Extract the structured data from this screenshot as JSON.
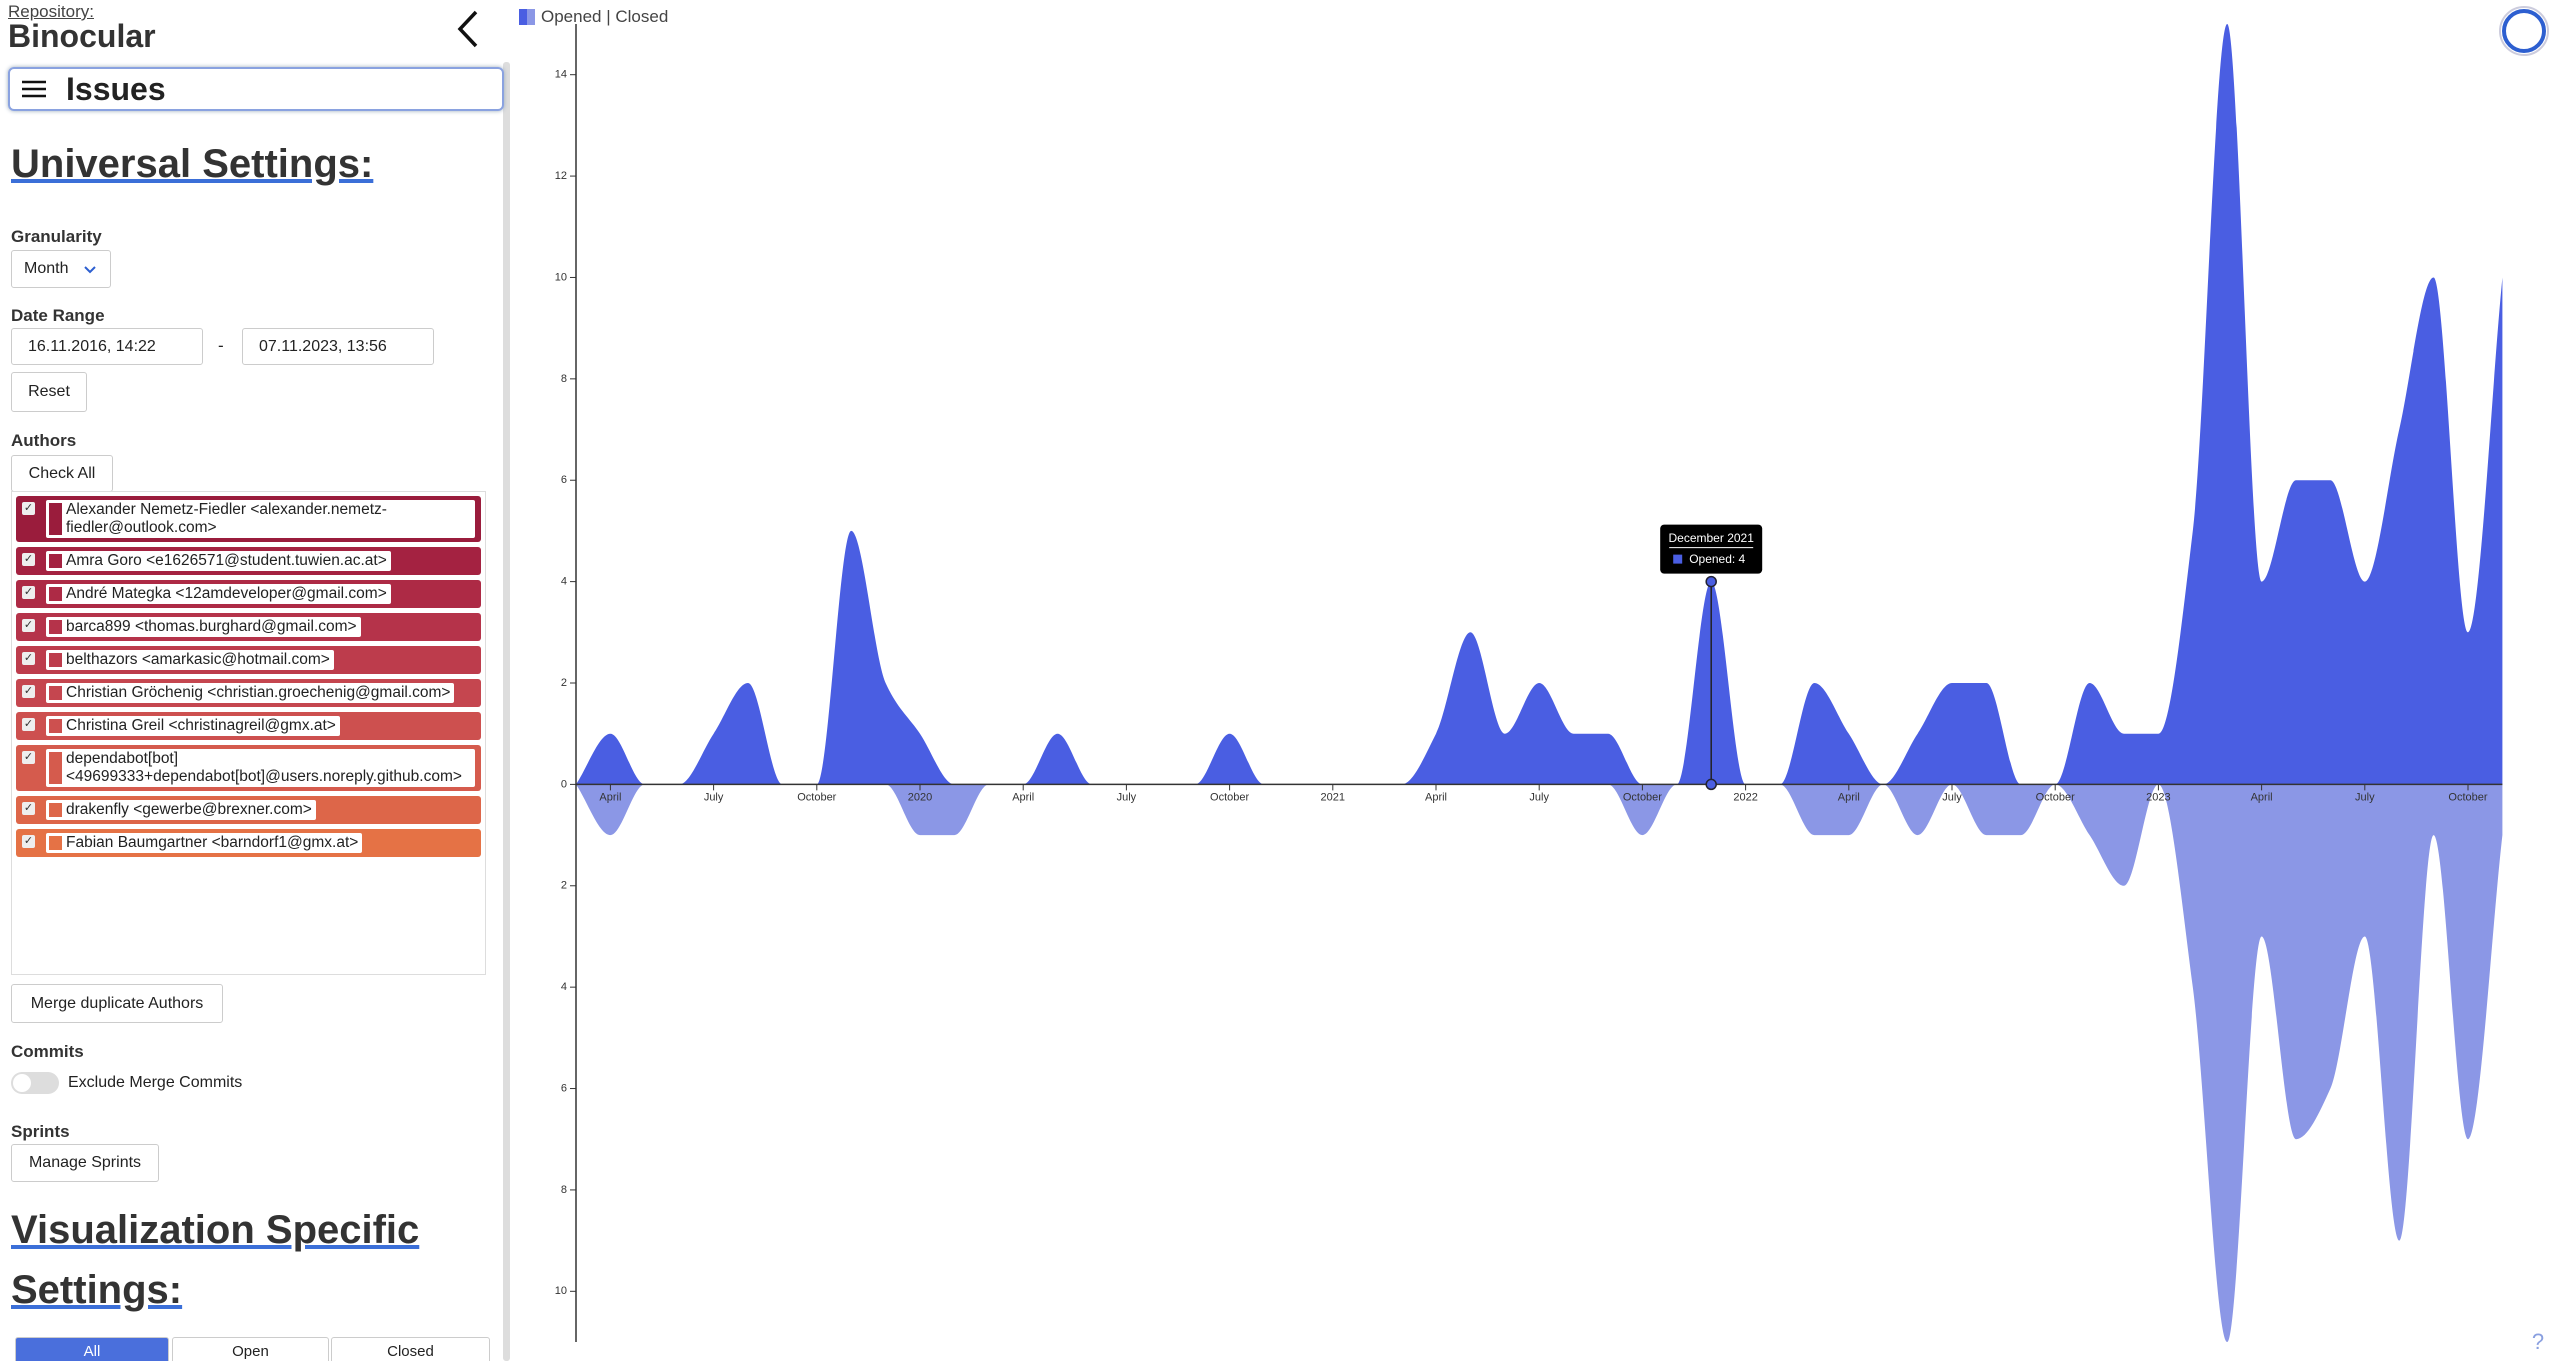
{
  "sidebar": {
    "repository_label": "Repository:",
    "repository": "Binocular",
    "view": "Issues",
    "universal_heading": "Universal Settings:",
    "granularity_label": "Granularity",
    "granularity": "Month",
    "date_range_label": "Date Range",
    "date_from": "16.11.2016, 14:22",
    "date_separator": "-",
    "date_to": "07.11.2023, 13:56",
    "reset": "Reset",
    "authors_label": "Authors",
    "check_all": "Check All",
    "authors": [
      {
        "label": "Alexander Nemetz-Fiedler <alexander.nemetz-fiedler@outlook.com>",
        "color": "#9a1c3c"
      },
      {
        "label": "Amra Goro <e1626571@student.tuwien.ac.at>",
        "color": "#a42241"
      },
      {
        "label": "André Mategka <12amdeveloper@gmail.com>",
        "color": "#ad2a45"
      },
      {
        "label": "barca899 <thomas.burghard@gmail.com>",
        "color": "#b5334a"
      },
      {
        "label": "belthazors <amarkasic@hotmail.com>",
        "color": "#bd3c4c"
      },
      {
        "label": "Christian Gröchenig <christian.groechenig@gmail.com>",
        "color": "#c5464f"
      },
      {
        "label": "Christina Greil <christinagreil@gmx.at>",
        "color": "#cd504f"
      },
      {
        "label": "dependabot[bot] <49699333+dependabot[bot]@users.noreply.github.com>",
        "color": "#d55b4d"
      },
      {
        "label": "drakenfly <gewerbe@brexner.com>",
        "color": "#dd6649"
      },
      {
        "label": "Fabian Baumgartner <barndorf1@gmx.at>",
        "color": "#e57245"
      }
    ],
    "merge": "Merge duplicate Authors",
    "commits_label": "Commits",
    "exclude_merge": "Exclude Merge Commits",
    "sprints_label": "Sprints",
    "manage_sprints": "Manage Sprints",
    "vis_heading": "Visualization Specific Settings:",
    "filters": [
      "All",
      "Open",
      "Closed"
    ]
  },
  "help": "?",
  "chart_data": {
    "type": "area",
    "x": [
      "2019-03",
      "2019-04",
      "2019-05",
      "2019-06",
      "2019-07",
      "2019-08",
      "2019-09",
      "2019-10",
      "2019-11",
      "2019-12",
      "2020-01",
      "2020-02",
      "2020-03",
      "2020-04",
      "2020-05",
      "2020-06",
      "2020-07",
      "2020-08",
      "2020-09",
      "2020-10",
      "2020-11",
      "2020-12",
      "2021-01",
      "2021-02",
      "2021-03",
      "2021-04",
      "2021-05",
      "2021-06",
      "2021-07",
      "2021-08",
      "2021-09",
      "2021-10",
      "2021-11",
      "2021-12",
      "2022-01",
      "2022-02",
      "2022-03",
      "2022-04",
      "2022-05",
      "2022-06",
      "2022-07",
      "2022-08",
      "2022-09",
      "2022-10",
      "2022-11",
      "2022-12",
      "2023-01",
      "2023-02",
      "2023-03",
      "2023-04",
      "2023-05",
      "2023-06",
      "2023-07",
      "2023-08",
      "2023-09",
      "2023-10",
      "2023-11"
    ],
    "series": [
      {
        "name": "Opened",
        "color": "#4a5ee2",
        "direction": "up",
        "values": [
          0,
          1,
          0,
          0,
          1,
          2,
          0,
          0,
          5,
          2,
          1,
          0,
          0,
          0,
          1,
          0,
          0,
          0,
          0,
          1,
          0,
          0,
          0,
          0,
          0,
          1,
          3,
          1,
          2,
          1,
          1,
          0,
          0,
          4,
          0,
          0,
          2,
          1,
          0,
          1,
          2,
          2,
          0,
          0,
          2,
          1,
          1,
          5,
          15,
          4,
          6,
          6,
          4,
          7,
          10,
          3,
          10
        ]
      },
      {
        "name": "Closed",
        "color": "#8b97e6",
        "direction": "down",
        "values": [
          0,
          1,
          0,
          0,
          0,
          0,
          0,
          0,
          0,
          0,
          1,
          1,
          0,
          0,
          0,
          0,
          0,
          0,
          0,
          0,
          0,
          0,
          0,
          0,
          0,
          0,
          0,
          0,
          0,
          0,
          0,
          1,
          0,
          0,
          0,
          0,
          1,
          1,
          0,
          1,
          0,
          1,
          1,
          0,
          1,
          2,
          0,
          4,
          11,
          3,
          7,
          6,
          3,
          9,
          1,
          7,
          1
        ]
      }
    ],
    "legend_separator": " | ",
    "ylim": [
      -11,
      15
    ],
    "yticks": [
      {
        "value": -10,
        "label": "10"
      },
      {
        "value": -8,
        "label": "8"
      },
      {
        "value": -6,
        "label": "6"
      },
      {
        "value": -4,
        "label": "4"
      },
      {
        "value": -2,
        "label": "2"
      },
      0,
      2,
      4,
      6,
      8,
      10,
      12,
      14
    ],
    "xticks": [
      {
        "value": "2019-04",
        "label": "April"
      },
      {
        "value": "2019-07",
        "label": "July"
      },
      {
        "value": "2019-10",
        "label": "October"
      },
      {
        "value": "2020-01",
        "label": "2020"
      },
      {
        "value": "2020-04",
        "label": "April"
      },
      {
        "value": "2020-07",
        "label": "July"
      },
      {
        "value": "2020-10",
        "label": "October"
      },
      {
        "value": "2021-01",
        "label": "2021"
      },
      {
        "value": "2021-04",
        "label": "April"
      },
      {
        "value": "2021-07",
        "label": "July"
      },
      {
        "value": "2021-10",
        "label": "October"
      },
      {
        "value": "2022-01",
        "label": "2022"
      },
      {
        "value": "2022-04",
        "label": "April"
      },
      {
        "value": "2022-07",
        "label": "July"
      },
      {
        "value": "2022-10",
        "label": "October"
      },
      {
        "value": "2023-01",
        "label": "2023"
      },
      {
        "value": "2023-04",
        "label": "April"
      },
      {
        "value": "2023-07",
        "label": "July"
      },
      {
        "value": "2023-10",
        "label": "October"
      }
    ],
    "tooltip": {
      "x": "2021-12",
      "title": "December 2021",
      "text": "Opened: 4"
    }
  }
}
